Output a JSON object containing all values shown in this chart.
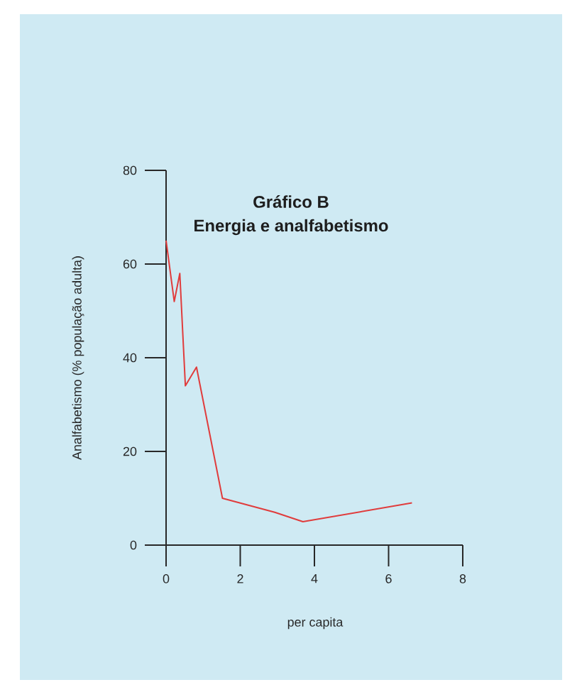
{
  "chart_data": {
    "type": "line",
    "title": "Gráfico B",
    "subtitle": "Energia e analfabetismo",
    "xlabel": "per capita",
    "ylabel": "Analfabetismo (% população adulta)",
    "x": [
      0,
      0.22,
      0.37,
      0.52,
      0.82,
      1.52,
      2.93,
      3.69,
      6.63
    ],
    "series": [
      {
        "color": "#e03c3c",
        "values": [
          65,
          52,
          58,
          34,
          38,
          10,
          7,
          5,
          9
        ]
      }
    ],
    "xlim": [
      0,
      8
    ],
    "ylim": [
      0,
      80
    ],
    "xticks": [
      0,
      2,
      4,
      6,
      8
    ],
    "yticks": [
      0,
      20,
      40,
      60,
      80
    ],
    "marker": "none",
    "line_style": "solid"
  }
}
